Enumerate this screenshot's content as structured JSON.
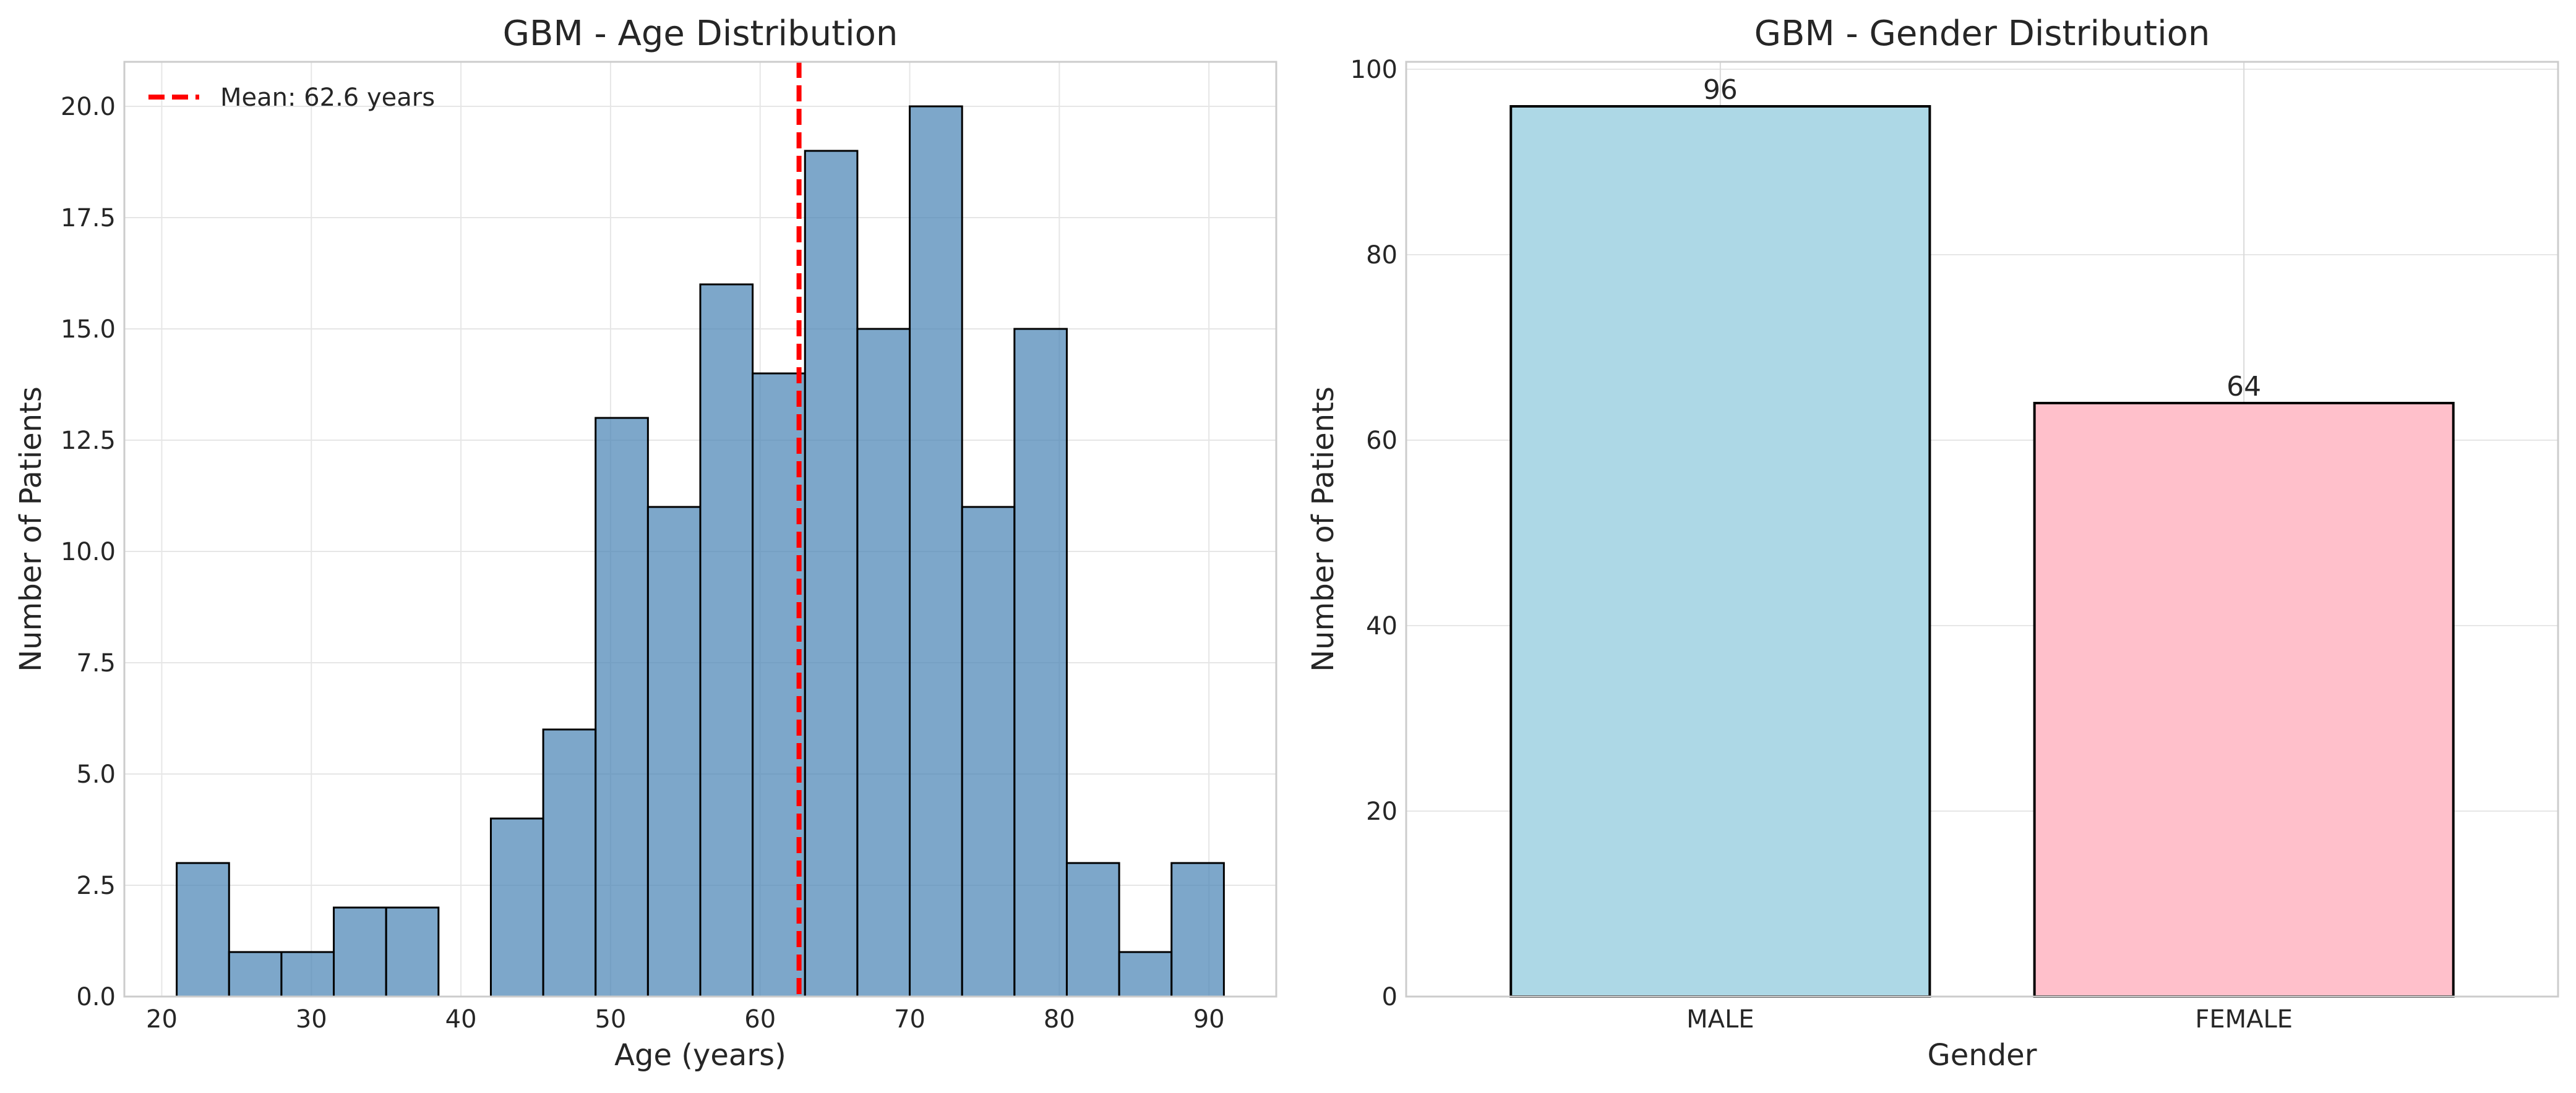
{
  "chart_data": [
    {
      "type": "bar",
      "title": "GBM - Age Distribution",
      "xlabel": "Age (years)",
      "ylabel": "Number of Patients",
      "xlim": [
        17.5,
        94.5
      ],
      "ylim": [
        0,
        21
      ],
      "bin_width": 3.5,
      "bins": [
        {
          "start": 21.0,
          "value": 3
        },
        {
          "start": 24.5,
          "value": 1
        },
        {
          "start": 28.0,
          "value": 1
        },
        {
          "start": 31.5,
          "value": 2
        },
        {
          "start": 35.0,
          "value": 2
        },
        {
          "start": 38.5,
          "value": 0
        },
        {
          "start": 42.0,
          "value": 4
        },
        {
          "start": 45.5,
          "value": 6
        },
        {
          "start": 49.0,
          "value": 13
        },
        {
          "start": 52.5,
          "value": 11
        },
        {
          "start": 56.0,
          "value": 16
        },
        {
          "start": 59.5,
          "value": 14
        },
        {
          "start": 63.0,
          "value": 19
        },
        {
          "start": 66.5,
          "value": 15
        },
        {
          "start": 70.0,
          "value": 20
        },
        {
          "start": 73.5,
          "value": 11
        },
        {
          "start": 77.0,
          "value": 15
        },
        {
          "start": 80.5,
          "value": 3
        },
        {
          "start": 84.0,
          "value": 1
        },
        {
          "start": 87.5,
          "value": 3
        }
      ],
      "x_ticks": [
        20,
        30,
        40,
        50,
        60,
        70,
        80,
        90
      ],
      "x_tick_labels": [
        "20",
        "30",
        "40",
        "50",
        "60",
        "70",
        "80",
        "90"
      ],
      "y_ticks": [
        0,
        2.5,
        5,
        7.5,
        10,
        12.5,
        15,
        17.5,
        20
      ],
      "y_tick_labels": [
        "0.0",
        "2.5",
        "5.0",
        "7.5",
        "10.0",
        "12.5",
        "15.0",
        "17.5",
        "20.0"
      ],
      "mean_line": {
        "value": 62.6,
        "label": "Mean: 62.6 years"
      },
      "legend_position": "top-left",
      "grid": true,
      "colors": {
        "bar": "#4682b4",
        "edge": "#000000",
        "mean": "#ff0000"
      }
    },
    {
      "type": "bar",
      "title": "GBM - Gender Distribution",
      "xlabel": "Gender",
      "ylabel": "Number of Patients",
      "ylim": [
        0,
        100.8
      ],
      "categories": [
        "MALE",
        "FEMALE"
      ],
      "values": [
        96,
        64
      ],
      "data_labels": [
        "96",
        "64"
      ],
      "y_ticks": [
        0,
        20,
        40,
        60,
        80,
        100
      ],
      "y_tick_labels": [
        "0",
        "20",
        "40",
        "60",
        "80",
        "100"
      ],
      "grid": true,
      "colors": {
        "bars": [
          "#add8e6",
          "#ffc0cb"
        ],
        "edge": "#000000"
      }
    }
  ]
}
